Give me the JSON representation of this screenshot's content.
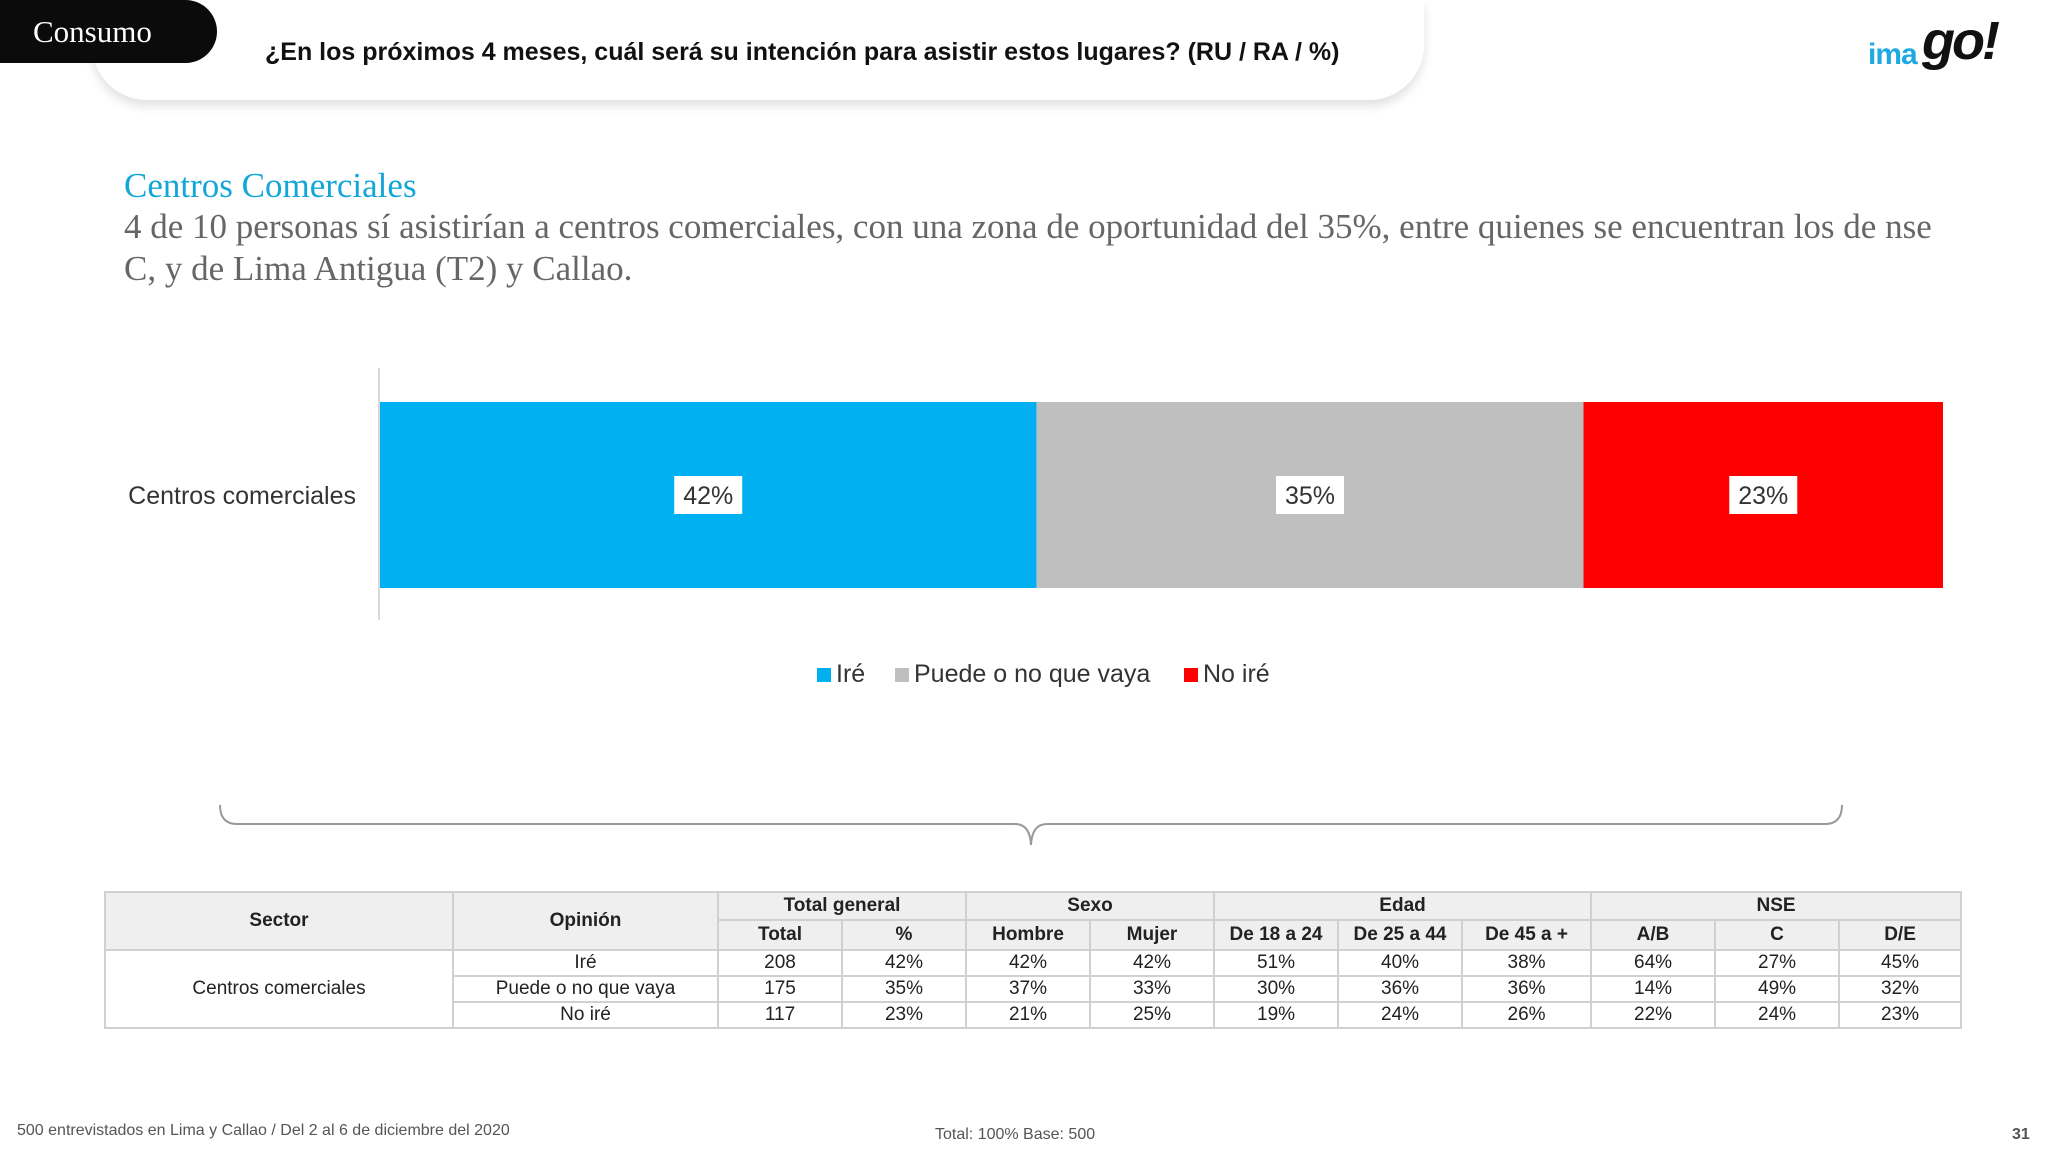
{
  "header": {
    "tag": "Consumo",
    "question": "¿En los próximos 4 meses, cuál será su intención para asistir estos lugares? (RU / RA  /  %)",
    "logo_text": "imago!"
  },
  "section": {
    "title": "Centros Comerciales",
    "subtitle": "4 de 10 personas sí asistirían a centros comerciales, con una zona de oportunidad del 35%, entre quienes se encuentran los de nse C, y de Lima Antigua (T2) y Callao."
  },
  "chart_data": {
    "type": "bar",
    "orientation": "horizontal-stacked-100",
    "categories": [
      "Centros comerciales"
    ],
    "series": [
      {
        "name": "Iré",
        "values": [
          42
        ],
        "label": "42%",
        "color": "#00b0f0"
      },
      {
        "name": "Puede o no que vaya",
        "values": [
          35
        ],
        "label": "35%",
        "color": "#bfbfbf"
      },
      {
        "name": "No iré",
        "values": [
          23
        ],
        "label": "23%",
        "color": "#ff0000"
      }
    ],
    "xlim": [
      0,
      100
    ],
    "legend_position": "bottom"
  },
  "table": {
    "group_headers": {
      "sector": "Sector",
      "opinion": "Opinión",
      "total_general": "Total general",
      "sexo": "Sexo",
      "edad": "Edad",
      "nse": "NSE"
    },
    "sub_headers": [
      "Total",
      "%",
      "Hombre",
      "Mujer",
      "De 18 a 24",
      "De 25 a 44",
      "De 45 a +",
      "A/B",
      "C",
      "D/E"
    ],
    "sector": "Centros comerciales",
    "rows": [
      {
        "opinion": "Iré",
        "cells": [
          "208",
          "42%",
          "42%",
          "42%",
          "51%",
          "40%",
          "38%",
          "64%",
          "27%",
          "45%"
        ]
      },
      {
        "opinion": "Puede o no que vaya",
        "cells": [
          "175",
          "35%",
          "37%",
          "33%",
          "30%",
          "36%",
          "36%",
          "14%",
          "49%",
          "32%"
        ]
      },
      {
        "opinion": "No iré",
        "cells": [
          "117",
          "23%",
          "21%",
          "25%",
          "19%",
          "24%",
          "26%",
          "22%",
          "24%",
          "23%"
        ]
      }
    ]
  },
  "footer": {
    "left": "500 entrevistados en Lima y Callao   /   Del 2 al 6 de diciembre del 2020",
    "middle": "Total: 100%   Base: 500",
    "page": "31"
  }
}
